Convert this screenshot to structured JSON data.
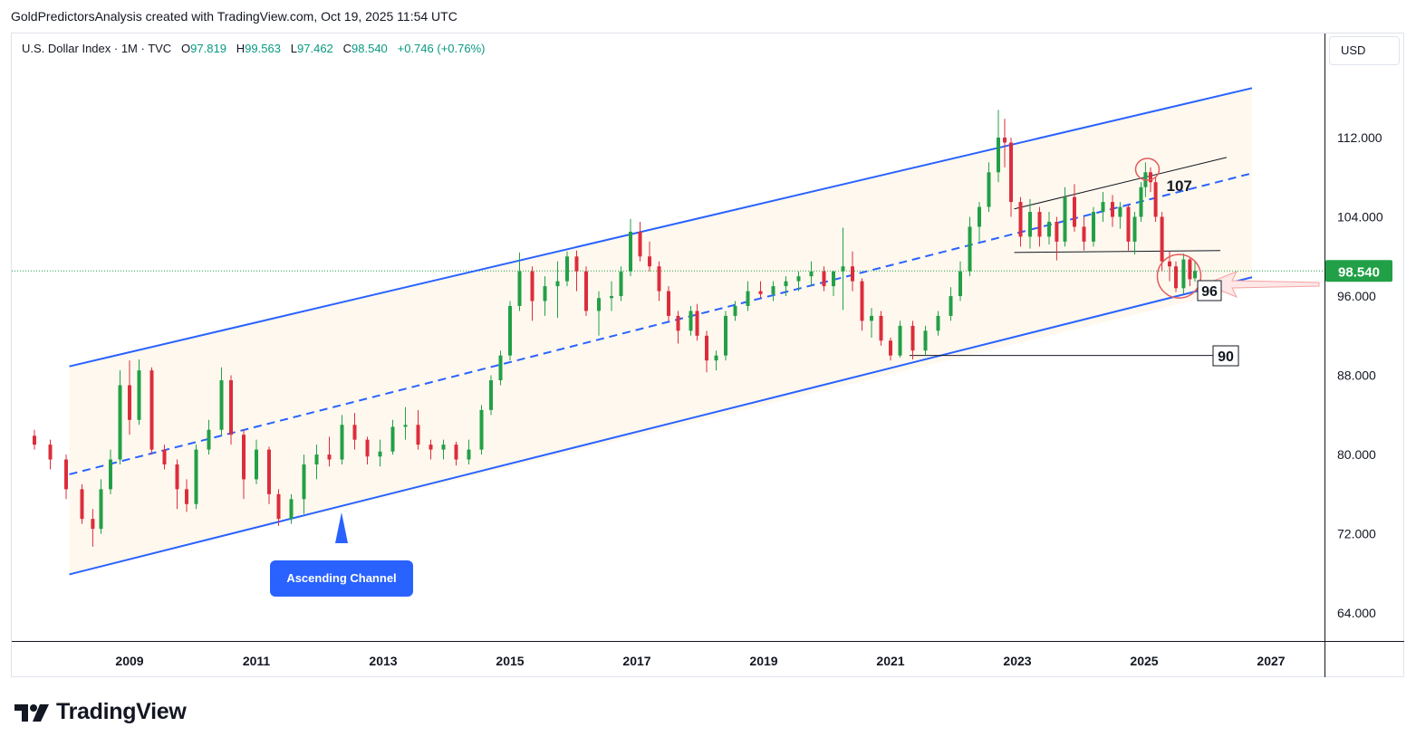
{
  "header": {
    "title": "GoldPredictorsAnalysis created with TradingView.com, Oct 19, 2025 11:54 UTC"
  },
  "legend": {
    "symbol": "U.S. Dollar Index · 1M · TVC",
    "open_label": "O",
    "open": "97.819",
    "high_label": "H",
    "high": "99.563",
    "low_label": "L",
    "low": "97.462",
    "close_label": "C",
    "close": "98.540",
    "change": "+0.746 (+0.76%)"
  },
  "currency": "USD",
  "price_badge": "98.540",
  "brand": {
    "name": "TradingView"
  },
  "annotations": {
    "channel_label": "Ascending Channel",
    "level_107": "107",
    "level_96": "96",
    "level_90": "90"
  },
  "colors": {
    "up": "#22a047",
    "down": "#dc2d3c",
    "channel": "#2962ff",
    "channel_fill": "#fff8ee",
    "badge": "#22a047",
    "circle": "#e35c5c"
  },
  "chart_data": {
    "type": "candlestick",
    "title": "U.S. Dollar Index · 1M · TVC",
    "x_ticks": [
      "2009",
      "2011",
      "2013",
      "2015",
      "2017",
      "2019",
      "2021",
      "2023",
      "2025",
      "2027"
    ],
    "y_ticks": [
      "64.000",
      "72.000",
      "80.000",
      "88.000",
      "96.000",
      "104.000",
      "112.000"
    ],
    "ylim": [
      59,
      120
    ],
    "xlim": [
      2007.4,
      2028.0
    ],
    "last_price": 98.54,
    "series": [
      {
        "t": 2007.5,
        "o": 81.9,
        "h": 82.5,
        "l": 80.5,
        "c": 81.0
      },
      {
        "t": 2007.75,
        "o": 81.0,
        "h": 81.5,
        "l": 78.5,
        "c": 79.5
      },
      {
        "t": 2008.0,
        "o": 79.5,
        "h": 80.0,
        "l": 75.5,
        "c": 76.5
      },
      {
        "t": 2008.25,
        "o": 76.5,
        "h": 77.0,
        "l": 73.0,
        "c": 73.5
      },
      {
        "t": 2008.42,
        "o": 73.5,
        "h": 74.5,
        "l": 70.7,
        "c": 72.5
      },
      {
        "t": 2008.55,
        "o": 72.5,
        "h": 77.5,
        "l": 72.0,
        "c": 76.5
      },
      {
        "t": 2008.7,
        "o": 76.5,
        "h": 80.5,
        "l": 76.0,
        "c": 79.5
      },
      {
        "t": 2008.85,
        "o": 79.5,
        "h": 88.5,
        "l": 79.0,
        "c": 87.0
      },
      {
        "t": 2009.0,
        "o": 87.0,
        "h": 89.5,
        "l": 82.0,
        "c": 83.5
      },
      {
        "t": 2009.15,
        "o": 83.5,
        "h": 89.6,
        "l": 83.0,
        "c": 88.5
      },
      {
        "t": 2009.35,
        "o": 88.5,
        "h": 88.8,
        "l": 80.0,
        "c": 80.5
      },
      {
        "t": 2009.55,
        "o": 80.5,
        "h": 81.0,
        "l": 78.5,
        "c": 79.0
      },
      {
        "t": 2009.75,
        "o": 79.0,
        "h": 79.5,
        "l": 74.5,
        "c": 76.5
      },
      {
        "t": 2009.9,
        "o": 76.5,
        "h": 77.5,
        "l": 74.2,
        "c": 75.0
      },
      {
        "t": 2010.05,
        "o": 75.0,
        "h": 81.0,
        "l": 74.5,
        "c": 80.5
      },
      {
        "t": 2010.25,
        "o": 80.5,
        "h": 83.5,
        "l": 80.0,
        "c": 82.5
      },
      {
        "t": 2010.45,
        "o": 82.5,
        "h": 88.8,
        "l": 82.0,
        "c": 87.5
      },
      {
        "t": 2010.6,
        "o": 87.5,
        "h": 88.0,
        "l": 81.0,
        "c": 82.0
      },
      {
        "t": 2010.8,
        "o": 82.0,
        "h": 82.5,
        "l": 75.5,
        "c": 77.5
      },
      {
        "t": 2011.0,
        "o": 77.5,
        "h": 81.5,
        "l": 77.0,
        "c": 80.5
      },
      {
        "t": 2011.2,
        "o": 80.5,
        "h": 80.8,
        "l": 75.0,
        "c": 76.0
      },
      {
        "t": 2011.35,
        "o": 76.0,
        "h": 76.5,
        "l": 72.8,
        "c": 73.5
      },
      {
        "t": 2011.55,
        "o": 73.5,
        "h": 76.0,
        "l": 73.0,
        "c": 75.5
      },
      {
        "t": 2011.75,
        "o": 75.5,
        "h": 80.0,
        "l": 74.0,
        "c": 79.0
      },
      {
        "t": 2011.95,
        "o": 79.0,
        "h": 81.0,
        "l": 77.5,
        "c": 80.0
      },
      {
        "t": 2012.15,
        "o": 80.0,
        "h": 81.8,
        "l": 78.8,
        "c": 79.5
      },
      {
        "t": 2012.35,
        "o": 79.5,
        "h": 84.0,
        "l": 79.0,
        "c": 83.0
      },
      {
        "t": 2012.55,
        "o": 83.0,
        "h": 84.2,
        "l": 80.5,
        "c": 81.5
      },
      {
        "t": 2012.75,
        "o": 81.5,
        "h": 81.8,
        "l": 79.0,
        "c": 79.8
      },
      {
        "t": 2012.95,
        "o": 79.8,
        "h": 81.5,
        "l": 78.8,
        "c": 80.3
      },
      {
        "t": 2013.15,
        "o": 80.3,
        "h": 83.5,
        "l": 80.0,
        "c": 82.8
      },
      {
        "t": 2013.35,
        "o": 82.8,
        "h": 84.8,
        "l": 81.5,
        "c": 83.0
      },
      {
        "t": 2013.55,
        "o": 83.0,
        "h": 84.5,
        "l": 80.5,
        "c": 81.0
      },
      {
        "t": 2013.75,
        "o": 81.0,
        "h": 81.5,
        "l": 79.5,
        "c": 80.5
      },
      {
        "t": 2013.95,
        "o": 80.5,
        "h": 81.5,
        "l": 79.5,
        "c": 81.0
      },
      {
        "t": 2014.15,
        "o": 81.0,
        "h": 81.3,
        "l": 78.9,
        "c": 79.5
      },
      {
        "t": 2014.35,
        "o": 79.5,
        "h": 81.5,
        "l": 79.0,
        "c": 80.5
      },
      {
        "t": 2014.55,
        "o": 80.5,
        "h": 85.0,
        "l": 80.0,
        "c": 84.5
      },
      {
        "t": 2014.7,
        "o": 84.5,
        "h": 88.0,
        "l": 84.0,
        "c": 87.5
      },
      {
        "t": 2014.85,
        "o": 87.5,
        "h": 90.5,
        "l": 87.0,
        "c": 90.0
      },
      {
        "t": 2015.0,
        "o": 90.0,
        "h": 95.5,
        "l": 89.5,
        "c": 95.0
      },
      {
        "t": 2015.15,
        "o": 95.0,
        "h": 100.4,
        "l": 94.5,
        "c": 98.5
      },
      {
        "t": 2015.35,
        "o": 98.5,
        "h": 99.0,
        "l": 93.5,
        "c": 95.5
      },
      {
        "t": 2015.55,
        "o": 95.5,
        "h": 98.0,
        "l": 94.0,
        "c": 97.0
      },
      {
        "t": 2015.75,
        "o": 97.0,
        "h": 99.5,
        "l": 93.8,
        "c": 97.5
      },
      {
        "t": 2015.9,
        "o": 97.5,
        "h": 100.5,
        "l": 97.0,
        "c": 100.0
      },
      {
        "t": 2016.05,
        "o": 100.0,
        "h": 100.6,
        "l": 96.5,
        "c": 98.5
      },
      {
        "t": 2016.2,
        "o": 98.5,
        "h": 99.0,
        "l": 94.0,
        "c": 94.5
      },
      {
        "t": 2016.4,
        "o": 94.5,
        "h": 96.5,
        "l": 92.0,
        "c": 95.8
      },
      {
        "t": 2016.6,
        "o": 95.8,
        "h": 97.5,
        "l": 94.5,
        "c": 96.0
      },
      {
        "t": 2016.75,
        "o": 96.0,
        "h": 99.0,
        "l": 95.5,
        "c": 98.5
      },
      {
        "t": 2016.9,
        "o": 98.5,
        "h": 103.8,
        "l": 98.0,
        "c": 102.5
      },
      {
        "t": 2017.05,
        "o": 102.5,
        "h": 103.5,
        "l": 99.5,
        "c": 100.0
      },
      {
        "t": 2017.2,
        "o": 100.0,
        "h": 101.5,
        "l": 98.5,
        "c": 99.0
      },
      {
        "t": 2017.35,
        "o": 99.0,
        "h": 99.5,
        "l": 95.5,
        "c": 96.5
      },
      {
        "t": 2017.5,
        "o": 96.5,
        "h": 97.0,
        "l": 93.5,
        "c": 94.0
      },
      {
        "t": 2017.65,
        "o": 94.0,
        "h": 94.5,
        "l": 91.2,
        "c": 92.5
      },
      {
        "t": 2017.85,
        "o": 92.5,
        "h": 95.0,
        "l": 92.0,
        "c": 94.5
      },
      {
        "t": 2017.95,
        "o": 94.5,
        "h": 95.2,
        "l": 91.5,
        "c": 92.0
      },
      {
        "t": 2018.1,
        "o": 92.0,
        "h": 92.5,
        "l": 88.3,
        "c": 89.5
      },
      {
        "t": 2018.25,
        "o": 89.5,
        "h": 90.5,
        "l": 88.5,
        "c": 90.0
      },
      {
        "t": 2018.4,
        "o": 90.0,
        "h": 94.5,
        "l": 89.5,
        "c": 94.0
      },
      {
        "t": 2018.55,
        "o": 94.0,
        "h": 95.5,
        "l": 93.5,
        "c": 95.0
      },
      {
        "t": 2018.75,
        "o": 95.0,
        "h": 97.5,
        "l": 94.5,
        "c": 96.5
      },
      {
        "t": 2018.95,
        "o": 96.5,
        "h": 97.5,
        "l": 95.8,
        "c": 96.2
      },
      {
        "t": 2019.15,
        "o": 96.2,
        "h": 97.5,
        "l": 95.5,
        "c": 97.0
      },
      {
        "t": 2019.35,
        "o": 97.0,
        "h": 98.0,
        "l": 96.0,
        "c": 97.5
      },
      {
        "t": 2019.55,
        "o": 97.5,
        "h": 98.5,
        "l": 96.5,
        "c": 98.0
      },
      {
        "t": 2019.75,
        "o": 98.0,
        "h": 99.5,
        "l": 97.0,
        "c": 98.5
      },
      {
        "t": 2019.95,
        "o": 98.5,
        "h": 99.0,
        "l": 96.5,
        "c": 97.0
      },
      {
        "t": 2020.1,
        "o": 97.0,
        "h": 98.5,
        "l": 96.0,
        "c": 98.5
      },
      {
        "t": 2020.25,
        "o": 98.5,
        "h": 102.9,
        "l": 94.6,
        "c": 99.0
      },
      {
        "t": 2020.4,
        "o": 99.0,
        "h": 100.5,
        "l": 96.5,
        "c": 97.5
      },
      {
        "t": 2020.55,
        "o": 97.5,
        "h": 97.8,
        "l": 92.5,
        "c": 93.5
      },
      {
        "t": 2020.7,
        "o": 93.5,
        "h": 94.8,
        "l": 91.8,
        "c": 94.0
      },
      {
        "t": 2020.85,
        "o": 94.0,
        "h": 94.5,
        "l": 91.0,
        "c": 91.5
      },
      {
        "t": 2021.0,
        "o": 91.5,
        "h": 91.8,
        "l": 89.5,
        "c": 90.0
      },
      {
        "t": 2021.15,
        "o": 90.0,
        "h": 93.5,
        "l": 89.8,
        "c": 93.0
      },
      {
        "t": 2021.35,
        "o": 93.0,
        "h": 93.5,
        "l": 89.6,
        "c": 90.5
      },
      {
        "t": 2021.55,
        "o": 90.5,
        "h": 93.0,
        "l": 90.0,
        "c": 92.5
      },
      {
        "t": 2021.75,
        "o": 92.5,
        "h": 94.5,
        "l": 92.0,
        "c": 94.0
      },
      {
        "t": 2021.95,
        "o": 94.0,
        "h": 96.9,
        "l": 93.5,
        "c": 96.0
      },
      {
        "t": 2022.1,
        "o": 96.0,
        "h": 99.5,
        "l": 95.5,
        "c": 98.5
      },
      {
        "t": 2022.25,
        "o": 98.5,
        "h": 104.0,
        "l": 98.0,
        "c": 103.0
      },
      {
        "t": 2022.4,
        "o": 103.0,
        "h": 105.5,
        "l": 101.5,
        "c": 105.0
      },
      {
        "t": 2022.55,
        "o": 105.0,
        "h": 109.5,
        "l": 104.5,
        "c": 108.5
      },
      {
        "t": 2022.7,
        "o": 108.5,
        "h": 114.8,
        "l": 107.5,
        "c": 112.0
      },
      {
        "t": 2022.8,
        "o": 112.0,
        "h": 113.9,
        "l": 109.0,
        "c": 111.5
      },
      {
        "t": 2022.9,
        "o": 111.5,
        "h": 112.0,
        "l": 104.0,
        "c": 105.5
      },
      {
        "t": 2023.05,
        "o": 105.5,
        "h": 106.0,
        "l": 101.0,
        "c": 102.0
      },
      {
        "t": 2023.2,
        "o": 102.0,
        "h": 105.8,
        "l": 100.8,
        "c": 104.5
      },
      {
        "t": 2023.35,
        "o": 104.5,
        "h": 105.0,
        "l": 101.0,
        "c": 102.0
      },
      {
        "t": 2023.5,
        "o": 102.0,
        "h": 104.5,
        "l": 101.2,
        "c": 103.5
      },
      {
        "t": 2023.62,
        "o": 103.5,
        "h": 104.0,
        "l": 99.6,
        "c": 101.5
      },
      {
        "t": 2023.75,
        "o": 101.5,
        "h": 107.0,
        "l": 101.0,
        "c": 106.0
      },
      {
        "t": 2023.9,
        "o": 106.0,
        "h": 107.3,
        "l": 102.5,
        "c": 103.0
      },
      {
        "t": 2024.05,
        "o": 103.0,
        "h": 104.0,
        "l": 100.6,
        "c": 101.5
      },
      {
        "t": 2024.2,
        "o": 101.5,
        "h": 105.0,
        "l": 101.0,
        "c": 104.5
      },
      {
        "t": 2024.35,
        "o": 104.5,
        "h": 106.5,
        "l": 103.5,
        "c": 105.5
      },
      {
        "t": 2024.5,
        "o": 105.5,
        "h": 106.2,
        "l": 103.0,
        "c": 104.0
      },
      {
        "t": 2024.62,
        "o": 104.0,
        "h": 105.5,
        "l": 102.8,
        "c": 105.0
      },
      {
        "t": 2024.75,
        "o": 105.0,
        "h": 105.2,
        "l": 100.6,
        "c": 101.5
      },
      {
        "t": 2024.85,
        "o": 101.5,
        "h": 104.5,
        "l": 100.2,
        "c": 104.0
      },
      {
        "t": 2024.95,
        "o": 104.0,
        "h": 107.5,
        "l": 103.5,
        "c": 107.0
      },
      {
        "t": 2025.02,
        "o": 107.0,
        "h": 109.5,
        "l": 106.0,
        "c": 108.5
      },
      {
        "t": 2025.1,
        "o": 108.5,
        "h": 109.0,
        "l": 106.5,
        "c": 107.5
      },
      {
        "t": 2025.18,
        "o": 107.5,
        "h": 108.0,
        "l": 103.5,
        "c": 104.0
      },
      {
        "t": 2025.28,
        "o": 104.0,
        "h": 104.5,
        "l": 98.5,
        "c": 99.5
      },
      {
        "t": 2025.4,
        "o": 99.5,
        "h": 100.5,
        "l": 97.5,
        "c": 99.0
      },
      {
        "t": 2025.5,
        "o": 99.0,
        "h": 99.5,
        "l": 96.4,
        "c": 96.8
      },
      {
        "t": 2025.62,
        "o": 96.8,
        "h": 100.3,
        "l": 96.2,
        "c": 99.7
      },
      {
        "t": 2025.72,
        "o": 99.7,
        "h": 99.9,
        "l": 97.0,
        "c": 97.7
      },
      {
        "t": 2025.8,
        "o": 97.8,
        "h": 99.56,
        "l": 97.46,
        "c": 98.54
      }
    ]
  }
}
